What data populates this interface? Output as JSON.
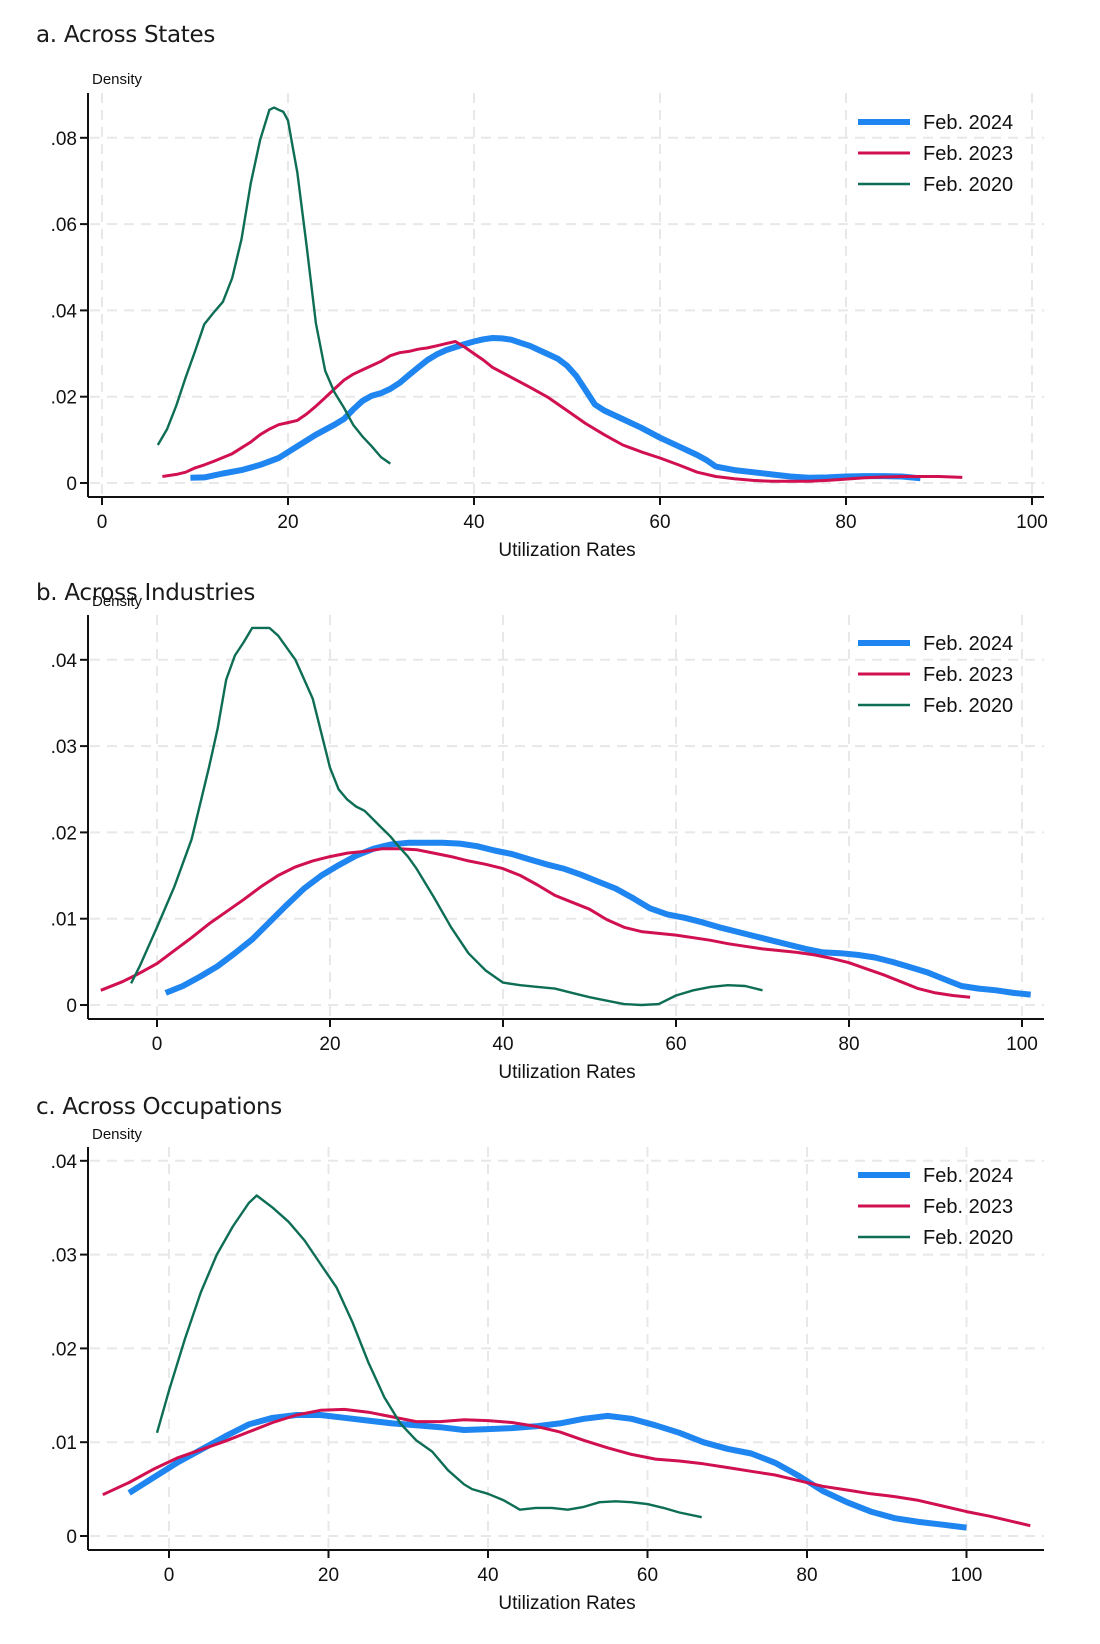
{
  "chart_data": [
    {
      "type": "line",
      "title": "a. Across States",
      "xlabel": "Utilization Rates",
      "ylabel": "Density",
      "xlim": [
        -2,
        102
      ],
      "ylim": [
        -0.003,
        0.09
      ],
      "xticks": [
        0,
        20,
        40,
        60,
        80,
        100
      ],
      "xtick_labels": [
        "0",
        "20",
        "40",
        "60",
        "80",
        "100"
      ],
      "yticks": [
        0,
        0.02,
        0.04,
        0.06,
        0.08
      ],
      "ytick_labels": [
        "0",
        ".02",
        ".04",
        ".06",
        ".08"
      ],
      "grid": true,
      "legend_position": "top-right",
      "series": [
        {
          "name": "Feb. 2024",
          "color": "#1f85f0",
          "x": [
            9.5,
            11,
            13,
            15,
            17,
            19,
            21,
            23,
            25,
            26,
            27,
            28,
            29,
            30,
            31,
            32,
            33,
            34,
            35,
            36,
            37,
            38,
            39,
            40,
            41,
            42,
            43,
            44,
            45,
            46,
            47,
            48,
            49,
            50,
            51,
            52,
            53,
            54,
            56,
            58,
            60,
            62,
            64,
            65,
            66,
            68,
            70,
            72,
            74,
            76,
            78,
            80,
            82,
            84,
            86,
            88
          ],
          "y": [
            0.0012,
            0.0013,
            0.0022,
            0.003,
            0.0042,
            0.0058,
            0.0085,
            0.0112,
            0.0135,
            0.0148,
            0.017,
            0.019,
            0.0202,
            0.0208,
            0.0218,
            0.0232,
            0.025,
            0.0268,
            0.0285,
            0.0298,
            0.0308,
            0.0315,
            0.0322,
            0.0328,
            0.0333,
            0.0336,
            0.0335,
            0.0332,
            0.0325,
            0.0318,
            0.0308,
            0.0298,
            0.0288,
            0.0272,
            0.0248,
            0.0215,
            0.0182,
            0.0168,
            0.0148,
            0.0128,
            0.0105,
            0.0085,
            0.0065,
            0.0053,
            0.0038,
            0.003,
            0.0025,
            0.002,
            0.0015,
            0.0012,
            0.0013,
            0.0015,
            0.0016,
            0.0016,
            0.0015,
            0.0011
          ]
        },
        {
          "name": "Feb. 2023",
          "color": "#d0104f",
          "x": [
            6.5,
            8,
            9,
            10,
            11,
            12,
            14,
            16,
            17,
            18,
            19,
            20,
            21,
            22,
            23,
            24,
            25,
            26,
            27,
            28,
            29,
            30,
            31,
            32,
            33,
            34,
            35,
            36,
            37,
            38,
            39,
            40,
            41,
            42,
            44,
            46,
            48,
            50,
            52,
            54,
            56,
            58,
            60,
            62,
            64,
            66,
            68,
            70,
            72,
            74,
            76,
            78,
            80,
            82,
            84,
            86,
            88,
            90,
            92.5
          ],
          "y": [
            0.0015,
            0.002,
            0.0025,
            0.0035,
            0.0042,
            0.005,
            0.0068,
            0.0095,
            0.0112,
            0.0125,
            0.0135,
            0.014,
            0.0145,
            0.016,
            0.0178,
            0.0198,
            0.0218,
            0.0238,
            0.0252,
            0.0262,
            0.0272,
            0.0282,
            0.0295,
            0.0302,
            0.0305,
            0.031,
            0.0313,
            0.0318,
            0.0323,
            0.0328,
            0.0315,
            0.03,
            0.0285,
            0.0268,
            0.0245,
            0.0222,
            0.0198,
            0.0168,
            0.0138,
            0.0112,
            0.0088,
            0.0072,
            0.0058,
            0.0042,
            0.0025,
            0.0015,
            0.001,
            0.0006,
            0.0004,
            0.0004,
            0.0004,
            0.0006,
            0.0009,
            0.0012,
            0.0014,
            0.0015,
            0.0015,
            0.0015,
            0.0013
          ]
        },
        {
          "name": "Feb. 2020",
          "color": "#0e6e55",
          "x": [
            6,
            7,
            8,
            9,
            10,
            11,
            12,
            13,
            14,
            15,
            16,
            17,
            18,
            18.5,
            19,
            19.5,
            20,
            20.5,
            21,
            22,
            23,
            24,
            25,
            26,
            27,
            28,
            29,
            30,
            31
          ],
          "y": [
            0.0088,
            0.0125,
            0.018,
            0.0245,
            0.0305,
            0.0368,
            0.0395,
            0.042,
            0.0475,
            0.0565,
            0.0695,
            0.0795,
            0.0865,
            0.087,
            0.0865,
            0.086,
            0.084,
            0.078,
            0.072,
            0.055,
            0.037,
            0.026,
            0.021,
            0.0175,
            0.0135,
            0.0108,
            0.0085,
            0.006,
            0.0045
          ]
        }
      ]
    },
    {
      "type": "line",
      "title": "b. Across Industries",
      "xlabel": "Utilization Rates",
      "ylabel": "Density",
      "xlim": [
        -8,
        103
      ],
      "ylim": [
        -0.0017,
        0.0455
      ],
      "xticks": [
        0,
        20,
        40,
        60,
        80,
        100
      ],
      "xtick_labels": [
        "0",
        "20",
        "40",
        "60",
        "80",
        "100"
      ],
      "yticks": [
        0,
        0.01,
        0.02,
        0.03,
        0.04
      ],
      "ytick_labels": [
        "0",
        ".01",
        ".02",
        ".03",
        ".04"
      ],
      "grid": true,
      "legend_position": "top-right",
      "series": [
        {
          "name": "Feb. 2024",
          "color": "#1f85f0",
          "x": [
            1,
            3,
            5,
            7,
            9,
            11,
            13,
            15,
            17,
            19,
            21,
            23,
            25,
            27,
            29,
            31,
            33,
            35,
            37,
            39,
            41,
            43,
            45,
            47,
            49,
            51,
            53,
            55,
            57,
            59,
            61,
            63,
            65,
            67,
            69,
            71,
            73,
            75,
            77,
            79,
            81,
            83,
            85,
            87,
            89,
            91,
            93,
            95,
            97,
            99,
            101
          ],
          "y": [
            0.0014,
            0.0022,
            0.0033,
            0.0045,
            0.006,
            0.0076,
            0.0096,
            0.0116,
            0.0135,
            0.015,
            0.0162,
            0.0173,
            0.0181,
            0.0186,
            0.0188,
            0.0188,
            0.0188,
            0.0187,
            0.0184,
            0.0179,
            0.0175,
            0.0169,
            0.0163,
            0.0158,
            0.0151,
            0.0143,
            0.0135,
            0.0124,
            0.0112,
            0.0105,
            0.0101,
            0.0096,
            0.009,
            0.0085,
            0.008,
            0.0075,
            0.007,
            0.0065,
            0.0061,
            0.006,
            0.0058,
            0.0055,
            0.005,
            0.0044,
            0.0038,
            0.003,
            0.0022,
            0.0019,
            0.0017,
            0.0014,
            0.0012
          ]
        },
        {
          "name": "Feb. 2023",
          "color": "#d0104f",
          "x": [
            -6.5,
            -4,
            -2,
            0,
            2,
            4,
            6,
            8,
            10,
            12,
            14,
            16,
            18,
            20,
            22,
            24,
            26,
            28,
            30,
            32,
            34,
            36,
            38,
            40,
            42,
            44,
            46,
            48,
            50,
            52,
            54,
            56,
            58,
            60,
            62,
            64,
            66,
            68,
            70,
            72,
            74,
            76,
            78,
            80,
            82,
            84,
            86,
            88,
            90,
            92,
            94
          ],
          "y": [
            0.0017,
            0.0027,
            0.0037,
            0.0048,
            0.0063,
            0.0078,
            0.0094,
            0.0108,
            0.0122,
            0.0137,
            0.015,
            0.016,
            0.0167,
            0.0172,
            0.0176,
            0.0178,
            0.0181,
            0.0181,
            0.018,
            0.0176,
            0.0172,
            0.0167,
            0.0163,
            0.0158,
            0.015,
            0.0139,
            0.0127,
            0.0119,
            0.0111,
            0.0099,
            0.009,
            0.0085,
            0.0083,
            0.0081,
            0.0078,
            0.0075,
            0.0071,
            0.0068,
            0.0065,
            0.0063,
            0.0061,
            0.0058,
            0.0054,
            0.0049,
            0.0042,
            0.0035,
            0.0027,
            0.0019,
            0.0014,
            0.0011,
            0.0009
          ]
        },
        {
          "name": "Feb. 2020",
          "color": "#0e6e55",
          "x": [
            -3,
            -2,
            0,
            2,
            4,
            6,
            7,
            8,
            9,
            10,
            11,
            12,
            13,
            14,
            16,
            18,
            20,
            21,
            22,
            23,
            24,
            25,
            26,
            27,
            28,
            29,
            30,
            32,
            34,
            36,
            38,
            40,
            42,
            44,
            46,
            48,
            50,
            52,
            54,
            56,
            58,
            60,
            62,
            64,
            66,
            68,
            70
          ],
          "y": [
            0.0025,
            0.0045,
            0.009,
            0.0137,
            0.0192,
            0.0275,
            0.032,
            0.0377,
            0.0405,
            0.042,
            0.0437,
            0.0437,
            0.0437,
            0.0428,
            0.04,
            0.0355,
            0.0275,
            0.025,
            0.0238,
            0.023,
            0.0225,
            0.0215,
            0.0205,
            0.0195,
            0.0183,
            0.0172,
            0.0158,
            0.0125,
            0.009,
            0.006,
            0.004,
            0.0026,
            0.0023,
            0.0021,
            0.0019,
            0.0014,
            0.0009,
            0.0005,
            0.0001,
            0.0,
            0.0001,
            0.0011,
            0.0017,
            0.0021,
            0.0023,
            0.0022,
            0.0017
          ]
        }
      ]
    },
    {
      "type": "line",
      "title": "c. Across Occupations",
      "xlabel": "Utilization Rates",
      "ylabel": "Density",
      "xlim": [
        -10,
        109
      ],
      "ylim": [
        -0.0015,
        0.0415
      ],
      "xticks": [
        0,
        20,
        40,
        60,
        80,
        100
      ],
      "xtick_labels": [
        "0",
        "20",
        "40",
        "60",
        "80",
        "100"
      ],
      "yticks": [
        0,
        0.01,
        0.02,
        0.03,
        0.04
      ],
      "ytick_labels": [
        "0",
        ".01",
        ".02",
        ".03",
        ".04"
      ],
      "grid": true,
      "legend_position": "top-right",
      "series": [
        {
          "name": "Feb. 2024",
          "color": "#1f85f0",
          "x": [
            -5,
            -2,
            1,
            4,
            7,
            10,
            13,
            16,
            19,
            22,
            25,
            28,
            31,
            34,
            37,
            40,
            43,
            46,
            49,
            52,
            55,
            58,
            61,
            64,
            67,
            70,
            73,
            76,
            79,
            82,
            85,
            88,
            91,
            94,
            97,
            100
          ],
          "y": [
            0.0046,
            0.0062,
            0.0078,
            0.0092,
            0.0106,
            0.0119,
            0.0126,
            0.0129,
            0.0129,
            0.0126,
            0.0123,
            0.012,
            0.0118,
            0.0116,
            0.0113,
            0.0114,
            0.0115,
            0.0117,
            0.012,
            0.0125,
            0.0128,
            0.0125,
            0.0118,
            0.011,
            0.01,
            0.0093,
            0.0088,
            0.0078,
            0.0064,
            0.0048,
            0.0036,
            0.0026,
            0.0019,
            0.0015,
            0.0012,
            0.0009
          ]
        },
        {
          "name": "Feb. 2023",
          "color": "#d0104f",
          "x": [
            -8.3,
            -5,
            -2,
            1,
            4,
            7,
            10,
            13,
            16,
            19,
            22,
            25,
            28,
            31,
            34,
            37,
            40,
            43,
            46,
            49,
            52,
            55,
            58,
            61,
            64,
            67,
            70,
            73,
            76,
            79,
            82,
            85,
            88,
            91,
            94,
            97,
            100,
            103,
            106,
            108
          ],
          "y": [
            0.0044,
            0.0057,
            0.0071,
            0.0083,
            0.0092,
            0.0101,
            0.0111,
            0.0121,
            0.0129,
            0.0134,
            0.0135,
            0.0132,
            0.0127,
            0.0122,
            0.0122,
            0.0124,
            0.0123,
            0.0121,
            0.0117,
            0.0111,
            0.0102,
            0.0094,
            0.0087,
            0.0082,
            0.008,
            0.0077,
            0.0073,
            0.0069,
            0.0065,
            0.0059,
            0.0053,
            0.0049,
            0.0045,
            0.0042,
            0.0038,
            0.0032,
            0.0026,
            0.0021,
            0.0015,
            0.0011
          ]
        },
        {
          "name": "Feb. 2020",
          "color": "#0e6e55",
          "x": [
            -1.5,
            0,
            2,
            4,
            6,
            8,
            10,
            11,
            13,
            15,
            17,
            19,
            21,
            23,
            25,
            27,
            29,
            31,
            33,
            35,
            37,
            38,
            40,
            42,
            44,
            46,
            48,
            50,
            52,
            54,
            56,
            58,
            60,
            62,
            64,
            66.8
          ],
          "y": [
            0.011,
            0.0155,
            0.021,
            0.026,
            0.03,
            0.033,
            0.0355,
            0.0363,
            0.035,
            0.0335,
            0.0315,
            0.029,
            0.0265,
            0.0228,
            0.0185,
            0.0148,
            0.012,
            0.0102,
            0.009,
            0.007,
            0.0055,
            0.005,
            0.0045,
            0.0038,
            0.0028,
            0.003,
            0.003,
            0.0028,
            0.0031,
            0.0036,
            0.0037,
            0.0036,
            0.0034,
            0.003,
            0.0025,
            0.002
          ]
        }
      ]
    }
  ]
}
